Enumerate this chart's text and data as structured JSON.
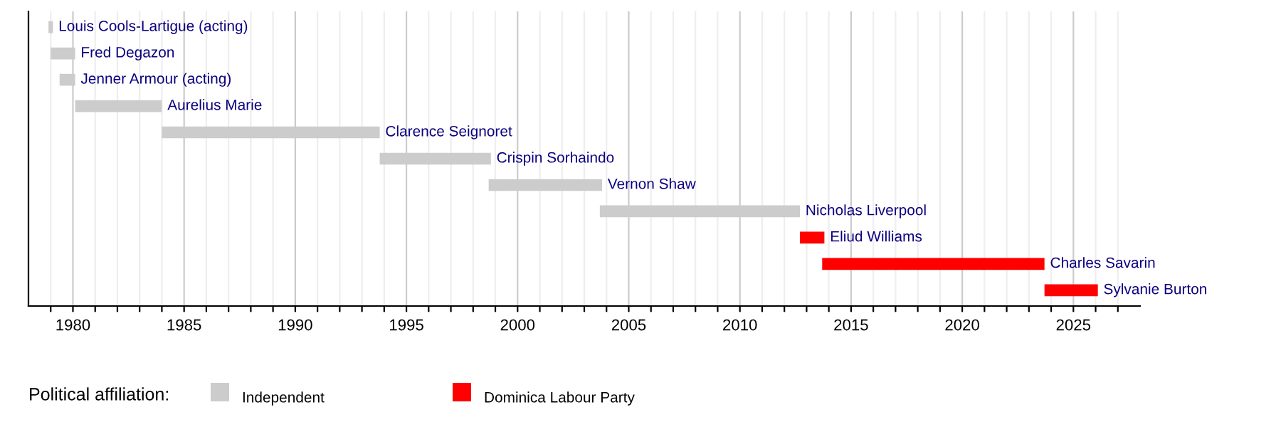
{
  "chart_data": {
    "type": "bar",
    "orientation": "horizontal",
    "categories": [
      "Louis Cools-Lartigue (acting)",
      "Fred Degazon",
      "Jenner Armour (acting)",
      "Aurelius Marie",
      "Clarence Seignoret",
      "Crispin Sorhaindo",
      "Vernon Shaw",
      "Nicholas Liverpool",
      "Eliud Williams",
      "Charles Savarin",
      "Sylvanie Burton"
    ],
    "series": [
      {
        "name": "Independent",
        "color": "#cccccc",
        "base": [
          1978.9,
          1979.0,
          1979.4,
          1980.1,
          1984.0,
          1993.8,
          1998.7,
          2003.7,
          null,
          null,
          null
        ],
        "values": [
          0.2,
          1.1,
          0.7,
          3.9,
          9.8,
          5.0,
          5.1,
          9.0,
          null,
          null,
          null
        ]
      },
      {
        "name": "Dominica Labour Party",
        "color": "#ff0000",
        "base": [
          null,
          null,
          null,
          null,
          null,
          null,
          null,
          null,
          2012.7,
          2013.7,
          2023.7
        ],
        "values": [
          null,
          null,
          null,
          null,
          null,
          null,
          null,
          null,
          1.1,
          10.0,
          2.4
        ]
      }
    ],
    "legend_title": "Political affiliation:",
    "legend": "bottom",
    "grid": "x",
    "tick_labels": "x",
    "xlim": [
      1978,
      2028
    ],
    "xticks": [
      {
        "value": 1979,
        "label": null
      },
      1980,
      {
        "value": 1981,
        "label": null
      },
      {
        "value": 1982,
        "label": null
      },
      {
        "value": 1983,
        "label": null
      },
      {
        "value": 1984,
        "label": null
      },
      1985,
      {
        "value": 1986,
        "label": null
      },
      {
        "value": 1987,
        "label": null
      },
      {
        "value": 1988,
        "label": null
      },
      {
        "value": 1989,
        "label": null
      },
      1990,
      {
        "value": 1991,
        "label": null
      },
      {
        "value": 1992,
        "label": null
      },
      {
        "value": 1993,
        "label": null
      },
      {
        "value": 1994,
        "label": null
      },
      1995,
      {
        "value": 1996,
        "label": null
      },
      {
        "value": 1997,
        "label": null
      },
      {
        "value": 1998,
        "label": null
      },
      {
        "value": 1999,
        "label": null
      },
      2000,
      {
        "value": 2001,
        "label": null
      },
      {
        "value": 2002,
        "label": null
      },
      {
        "value": 2003,
        "label": null
      },
      {
        "value": 2004,
        "label": null
      },
      2005,
      {
        "value": 2006,
        "label": null
      },
      {
        "value": 2007,
        "label": null
      },
      {
        "value": 2008,
        "label": null
      },
      {
        "value": 2009,
        "label": null
      },
      2010,
      {
        "value": 2011,
        "label": null
      },
      {
        "value": 2012,
        "label": null
      },
      {
        "value": 2013,
        "label": null
      },
      {
        "value": 2014,
        "label": null
      },
      2015,
      {
        "value": 2016,
        "label": null
      },
      {
        "value": 2017,
        "label": null
      },
      {
        "value": 2018,
        "label": null
      },
      {
        "value": 2019,
        "label": null
      },
      2020,
      {
        "value": 2021,
        "label": null
      },
      {
        "value": 2022,
        "label": null
      },
      {
        "value": 2023,
        "label": null
      },
      {
        "value": 2024,
        "label": null
      },
      2025,
      {
        "value": 2026,
        "label": null
      },
      {
        "value": 2027,
        "label": null
      }
    ]
  }
}
